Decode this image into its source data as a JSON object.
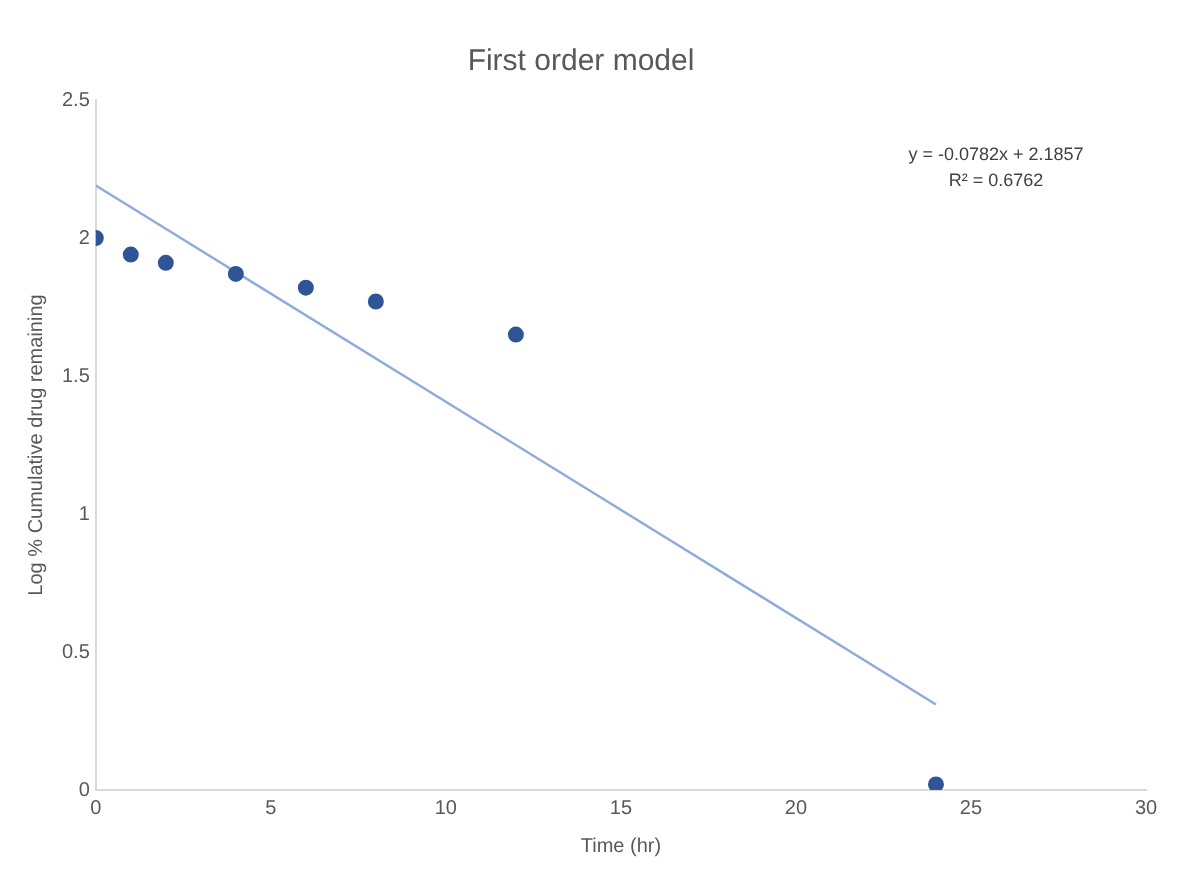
{
  "chart_data": {
    "type": "scatter",
    "title": "First order model",
    "xlabel": "Time (hr)",
    "ylabel": "Log % Cumulative drug remaining",
    "xlim": [
      0,
      30
    ],
    "xticks": [
      0,
      5,
      10,
      15,
      20,
      25,
      30
    ],
    "ylim": [
      0,
      2.5
    ],
    "yticks": [
      0,
      0.5,
      1,
      1.5,
      2,
      2.5
    ],
    "grid": false,
    "legend": false,
    "marker": "circle",
    "series": [
      {
        "color": "#2f5597",
        "x": [
          0,
          1,
          2,
          4,
          6,
          8,
          12,
          24
        ],
        "values": [
          2.0,
          1.94,
          1.91,
          1.87,
          1.82,
          1.77,
          1.65,
          0.02
        ]
      },
      {
        "type": "line",
        "color": "#8faadc",
        "marker": "none",
        "x": [
          0,
          24
        ],
        "values": [
          2.19,
          0.31
        ]
      }
    ],
    "annotations": [
      "y = -0.0782x + 2.1857",
      "R² = 0.6762"
    ]
  }
}
